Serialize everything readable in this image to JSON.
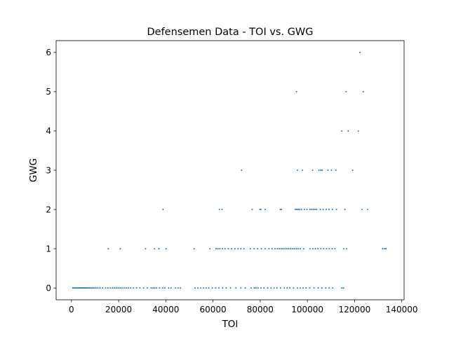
{
  "chart_data": {
    "type": "scatter",
    "title": "Defensemen Data - TOI vs. GWG",
    "xlabel": "TOI",
    "ylabel": "GWG",
    "xlim": [
      -6500,
      141000
    ],
    "ylim": [
      -0.3,
      6.3
    ],
    "xticks": [
      0,
      20000,
      40000,
      60000,
      80000,
      100000,
      120000,
      140000
    ],
    "xtick_labels": [
      "0",
      "20000",
      "40000",
      "60000",
      "80000",
      "100000",
      "120000",
      "140000"
    ],
    "yticks": [
      0,
      1,
      2,
      3,
      4,
      5,
      6
    ],
    "ytick_labels": [
      "0",
      "1",
      "2",
      "3",
      "4",
      "5",
      "6"
    ],
    "grid": false,
    "legend": "none",
    "marker_color": "#1f77b4",
    "series": [
      {
        "points": [
          [
            600,
            0
          ],
          [
            1000,
            0
          ],
          [
            1500,
            0
          ],
          [
            2000,
            0
          ],
          [
            2400,
            0
          ],
          [
            2800,
            0
          ],
          [
            3200,
            0
          ],
          [
            3600,
            0
          ],
          [
            4000,
            0
          ],
          [
            4400,
            0
          ],
          [
            4800,
            0
          ],
          [
            5200,
            0
          ],
          [
            5600,
            0
          ],
          [
            6000,
            0
          ],
          [
            6400,
            0
          ],
          [
            6900,
            0
          ],
          [
            7400,
            0
          ],
          [
            7900,
            0
          ],
          [
            8500,
            0
          ],
          [
            9100,
            0
          ],
          [
            9700,
            0
          ],
          [
            10400,
            0
          ],
          [
            11200,
            0
          ],
          [
            12100,
            0
          ],
          [
            13200,
            0
          ],
          [
            14500,
            0
          ],
          [
            15500,
            0
          ],
          [
            16500,
            0
          ],
          [
            17400,
            0
          ],
          [
            18200,
            0
          ],
          [
            19000,
            0
          ],
          [
            19800,
            0
          ],
          [
            20600,
            0
          ],
          [
            21400,
            0
          ],
          [
            22300,
            0
          ],
          [
            23200,
            0
          ],
          [
            24100,
            0
          ],
          [
            25100,
            0
          ],
          [
            26300,
            0
          ],
          [
            27600,
            0
          ],
          [
            29000,
            0
          ],
          [
            30600,
            0
          ],
          [
            32200,
            0
          ],
          [
            33800,
            0
          ],
          [
            34600,
            0
          ],
          [
            35300,
            0
          ],
          [
            36100,
            0
          ],
          [
            37300,
            0
          ],
          [
            38700,
            0
          ],
          [
            39600,
            0
          ],
          [
            41200,
            0
          ],
          [
            42200,
            0
          ],
          [
            44100,
            0
          ],
          [
            45200,
            0
          ],
          [
            46200,
            0
          ],
          [
            52400,
            0
          ],
          [
            53600,
            0
          ],
          [
            54800,
            0
          ],
          [
            56000,
            0
          ],
          [
            57100,
            0
          ],
          [
            58200,
            0
          ],
          [
            59700,
            0
          ],
          [
            61100,
            0
          ],
          [
            62500,
            0
          ],
          [
            64100,
            0
          ],
          [
            65600,
            0
          ],
          [
            67400,
            0
          ],
          [
            69700,
            0
          ],
          [
            71800,
            0
          ],
          [
            73700,
            0
          ],
          [
            76200,
            0
          ],
          [
            77500,
            0
          ],
          [
            78200,
            0
          ],
          [
            79100,
            0
          ],
          [
            80300,
            0
          ],
          [
            81600,
            0
          ],
          [
            83200,
            0
          ],
          [
            84600,
            0
          ],
          [
            85900,
            0
          ],
          [
            87100,
            0
          ],
          [
            88600,
            0
          ],
          [
            90200,
            0
          ],
          [
            91400,
            0
          ],
          [
            92600,
            0
          ],
          [
            94100,
            0
          ],
          [
            95800,
            0
          ],
          [
            97000,
            0
          ],
          [
            98200,
            0
          ],
          [
            99400,
            0
          ],
          [
            101000,
            0
          ],
          [
            102800,
            0
          ],
          [
            104600,
            0
          ],
          [
            106200,
            0
          ],
          [
            107800,
            0
          ],
          [
            109200,
            0
          ],
          [
            110700,
            0
          ],
          [
            114600,
            0
          ],
          [
            115300,
            0
          ],
          [
            15600,
            1
          ],
          [
            20700,
            1
          ],
          [
            31400,
            1
          ],
          [
            35200,
            1
          ],
          [
            37100,
            1
          ],
          [
            40100,
            1
          ],
          [
            52000,
            1
          ],
          [
            58700,
            1
          ],
          [
            61300,
            1
          ],
          [
            62100,
            1
          ],
          [
            62900,
            1
          ],
          [
            64000,
            1
          ],
          [
            65100,
            1
          ],
          [
            66500,
            1
          ],
          [
            67800,
            1
          ],
          [
            69300,
            1
          ],
          [
            70600,
            1
          ],
          [
            71800,
            1
          ],
          [
            73100,
            1
          ],
          [
            75800,
            1
          ],
          [
            77400,
            1
          ],
          [
            78900,
            1
          ],
          [
            80500,
            1
          ],
          [
            82100,
            1
          ],
          [
            83700,
            1
          ],
          [
            85000,
            1
          ],
          [
            86300,
            1
          ],
          [
            87300,
            1
          ],
          [
            88100,
            1
          ],
          [
            88900,
            1
          ],
          [
            89700,
            1
          ],
          [
            90500,
            1
          ],
          [
            91300,
            1
          ],
          [
            92100,
            1
          ],
          [
            92900,
            1
          ],
          [
            93700,
            1
          ],
          [
            94500,
            1
          ],
          [
            95300,
            1
          ],
          [
            96100,
            1
          ],
          [
            97000,
            1
          ],
          [
            98400,
            1
          ],
          [
            101100,
            1
          ],
          [
            102300,
            1
          ],
          [
            103400,
            1
          ],
          [
            104500,
            1
          ],
          [
            105700,
            1
          ],
          [
            106900,
            1
          ],
          [
            108100,
            1
          ],
          [
            109300,
            1
          ],
          [
            110500,
            1
          ],
          [
            111700,
            1
          ],
          [
            115400,
            1
          ],
          [
            116600,
            1
          ],
          [
            131900,
            1
          ],
          [
            132700,
            1
          ],
          [
            133300,
            1
          ],
          [
            38800,
            2
          ],
          [
            62700,
            2
          ],
          [
            63800,
            2
          ],
          [
            76600,
            2
          ],
          [
            79900,
            2
          ],
          [
            80300,
            2
          ],
          [
            82100,
            2
          ],
          [
            88500,
            2
          ],
          [
            89000,
            2
          ],
          [
            94900,
            2
          ],
          [
            95500,
            2
          ],
          [
            96100,
            2
          ],
          [
            96700,
            2
          ],
          [
            97500,
            2
          ],
          [
            98700,
            2
          ],
          [
            99800,
            2
          ],
          [
            101100,
            2
          ],
          [
            101800,
            2
          ],
          [
            102500,
            2
          ],
          [
            103200,
            2
          ],
          [
            103900,
            2
          ],
          [
            105500,
            2
          ],
          [
            106700,
            2
          ],
          [
            108000,
            2
          ],
          [
            109200,
            2
          ],
          [
            110600,
            2
          ],
          [
            112300,
            2
          ],
          [
            115900,
            2
          ],
          [
            123200,
            2
          ],
          [
            125500,
            2
          ],
          [
            72100,
            3
          ],
          [
            95800,
            3
          ],
          [
            97900,
            3
          ],
          [
            102200,
            3
          ],
          [
            104900,
            3
          ],
          [
            105700,
            3
          ],
          [
            106300,
            3
          ],
          [
            108700,
            3
          ],
          [
            110200,
            3
          ],
          [
            112100,
            3
          ],
          [
            119200,
            3
          ],
          [
            114600,
            4
          ],
          [
            117300,
            4
          ],
          [
            121600,
            4
          ],
          [
            95400,
            5
          ],
          [
            116400,
            5
          ],
          [
            123700,
            5
          ],
          [
            122300,
            6
          ]
        ]
      }
    ]
  }
}
